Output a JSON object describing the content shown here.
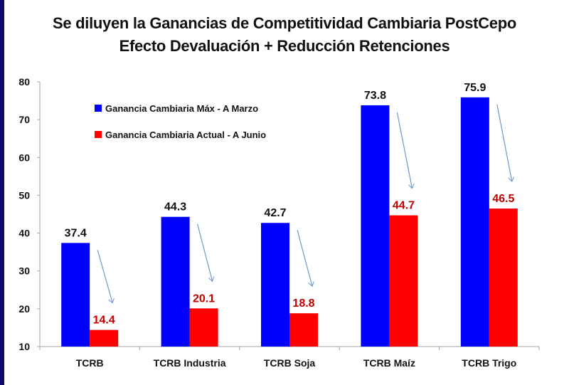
{
  "chart_data": {
    "type": "bar",
    "title": "Se diluyen la Ganancias de Competitividad Cambiaria PostCepo",
    "subtitle": "Efecto Devaluación + Reducción Retenciones",
    "xlabel": "",
    "ylabel": "",
    "ylim": [
      10,
      80
    ],
    "yticks": [
      10,
      20,
      30,
      40,
      50,
      60,
      70,
      80
    ],
    "grid": false,
    "legend_position": "top-left",
    "categories": [
      "TCRB",
      "TCRB Industria",
      "TCRB Soja",
      "TCRB Maíz",
      "TCRB Trigo"
    ],
    "series": [
      {
        "name": "Ganancia Cambiaria Máx - A Marzo",
        "color": "#0000ff",
        "label_color": "#111111",
        "values": [
          37.4,
          44.3,
          42.7,
          73.8,
          75.9
        ],
        "labels": [
          "37.4",
          "44.3",
          "42.7",
          "73.8",
          "75.9"
        ]
      },
      {
        "name": "Ganancia Cambiaria Actual - A Junio",
        "color": "#ff0000",
        "label_color": "#c00000",
        "values": [
          14.4,
          20.1,
          18.8,
          44.7,
          46.5
        ],
        "labels": [
          "14.4",
          "20.1",
          "18.8",
          "44.7",
          "46.5"
        ]
      }
    ],
    "annotations": "Downward arrows from each blue (March) bar toward the red (June) bar",
    "arrow_color": "#6f98c8"
  }
}
